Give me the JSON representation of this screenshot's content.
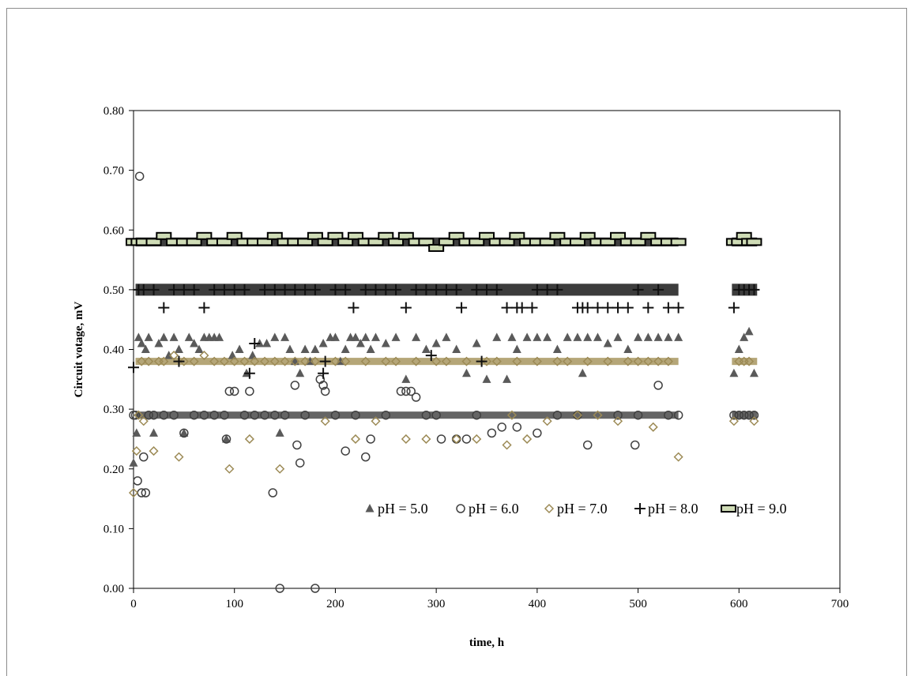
{
  "chart_data": {
    "type": "scatter",
    "xlabel": "time, h",
    "ylabel": "Circuit votage, mV",
    "xlim": [
      0,
      700
    ],
    "ylim": [
      0,
      0.8
    ],
    "x_ticks": [
      "0",
      "100",
      "200",
      "300",
      "400",
      "500",
      "600",
      "700"
    ],
    "y_ticks": [
      "0.00",
      "0.10",
      "0.20",
      "0.30",
      "0.40",
      "0.50",
      "0.60",
      "0.70",
      "0.80"
    ],
    "grid": false,
    "legend_position": "lower-right inside plot",
    "series": [
      {
        "name": "pH = 5.0",
        "marker": "triangle",
        "color": "#5a5a5a",
        "x": [
          0,
          3,
          5,
          8,
          12,
          15,
          20,
          25,
          30,
          35,
          40,
          45,
          50,
          55,
          60,
          65,
          70,
          75,
          80,
          85,
          92,
          98,
          105,
          112,
          118,
          125,
          132,
          140,
          145,
          150,
          155,
          160,
          165,
          170,
          175,
          180,
          188,
          195,
          200,
          205,
          210,
          215,
          220,
          225,
          230,
          235,
          240,
          250,
          260,
          270,
          280,
          290,
          300,
          310,
          320,
          330,
          340,
          350,
          360,
          370,
          375,
          380,
          390,
          400,
          410,
          420,
          430,
          440,
          445,
          450,
          460,
          470,
          480,
          490,
          500,
          510,
          520,
          530,
          540,
          595,
          600,
          605,
          610,
          615
        ],
        "y": [
          0.21,
          0.26,
          0.42,
          0.41,
          0.4,
          0.42,
          0.26,
          0.41,
          0.42,
          0.39,
          0.42,
          0.4,
          0.26,
          0.42,
          0.41,
          0.4,
          0.42,
          0.42,
          0.42,
          0.42,
          0.25,
          0.39,
          0.4,
          0.36,
          0.39,
          0.41,
          0.41,
          0.42,
          0.26,
          0.42,
          0.4,
          0.38,
          0.36,
          0.4,
          0.38,
          0.4,
          0.41,
          0.42,
          0.42,
          0.38,
          0.4,
          0.42,
          0.42,
          0.41,
          0.42,
          0.4,
          0.42,
          0.41,
          0.42,
          0.35,
          0.42,
          0.4,
          0.41,
          0.42,
          0.4,
          0.36,
          0.41,
          0.35,
          0.42,
          0.35,
          0.42,
          0.4,
          0.42,
          0.42,
          0.42,
          0.4,
          0.42,
          0.42,
          0.36,
          0.42,
          0.42,
          0.41,
          0.42,
          0.4,
          0.42,
          0.42,
          0.42,
          0.42,
          0.42,
          0.36,
          0.4,
          0.42,
          0.43,
          0.36
        ]
      },
      {
        "name": "pH = 6.0",
        "marker": "circle",
        "color": "#404040",
        "x": [
          0,
          2,
          4,
          6,
          8,
          10,
          12,
          15,
          20,
          30,
          40,
          50,
          60,
          70,
          80,
          90,
          92,
          95,
          100,
          110,
          115,
          120,
          130,
          138,
          140,
          145,
          150,
          160,
          162,
          165,
          170,
          180,
          185,
          188,
          190,
          200,
          210,
          220,
          230,
          235,
          250,
          265,
          270,
          275,
          280,
          290,
          300,
          305,
          320,
          330,
          340,
          355,
          365,
          380,
          400,
          420,
          440,
          450,
          480,
          497,
          500,
          520,
          530,
          540,
          595,
          600,
          605,
          610,
          615
        ],
        "y": [
          0.29,
          0.29,
          0.18,
          0.69,
          0.16,
          0.22,
          0.16,
          0.29,
          0.29,
          0.29,
          0.29,
          0.26,
          0.29,
          0.29,
          0.29,
          0.29,
          0.25,
          0.33,
          0.33,
          0.29,
          0.33,
          0.29,
          0.29,
          0.16,
          0.29,
          0.0,
          0.29,
          0.34,
          0.24,
          0.21,
          0.29,
          0.0,
          0.35,
          0.34,
          0.33,
          0.29,
          0.23,
          0.29,
          0.22,
          0.25,
          0.29,
          0.33,
          0.33,
          0.33,
          0.32,
          0.29,
          0.29,
          0.25,
          0.25,
          0.25,
          0.29,
          0.26,
          0.27,
          0.27,
          0.26,
          0.29,
          0.29,
          0.24,
          0.29,
          0.24,
          0.29,
          0.34,
          0.29,
          0.29,
          0.29,
          0.29,
          0.29,
          0.29,
          0.29
        ]
      },
      {
        "name": "pH = 7.0",
        "marker": "diamond",
        "color": "#9c8a55",
        "x": [
          0,
          3,
          5,
          8,
          10,
          15,
          20,
          25,
          30,
          40,
          45,
          50,
          60,
          70,
          80,
          90,
          95,
          100,
          110,
          115,
          120,
          130,
          140,
          145,
          150,
          160,
          170,
          180,
          190,
          200,
          210,
          220,
          230,
          240,
          250,
          260,
          270,
          280,
          290,
          300,
          310,
          320,
          330,
          340,
          350,
          360,
          370,
          375,
          380,
          390,
          400,
          410,
          420,
          430,
          440,
          450,
          460,
          470,
          480,
          490,
          500,
          510,
          515,
          520,
          530,
          540,
          595,
          600,
          605,
          610,
          615
        ],
        "y": [
          0.16,
          0.23,
          0.29,
          0.38,
          0.28,
          0.38,
          0.23,
          0.38,
          0.38,
          0.39,
          0.22,
          0.38,
          0.38,
          0.39,
          0.38,
          0.38,
          0.2,
          0.38,
          0.38,
          0.25,
          0.38,
          0.38,
          0.38,
          0.2,
          0.38,
          0.38,
          0.38,
          0.38,
          0.28,
          0.38,
          0.38,
          0.25,
          0.38,
          0.28,
          0.38,
          0.38,
          0.25,
          0.38,
          0.25,
          0.38,
          0.38,
          0.25,
          0.38,
          0.25,
          0.38,
          0.38,
          0.24,
          0.29,
          0.38,
          0.25,
          0.38,
          0.28,
          0.38,
          0.38,
          0.29,
          0.38,
          0.29,
          0.38,
          0.28,
          0.38,
          0.38,
          0.38,
          0.27,
          0.38,
          0.38,
          0.22,
          0.28,
          0.38,
          0.38,
          0.38,
          0.28
        ],
        "lowerbandx": [],
        "lowerbandy": []
      },
      {
        "name": "pH = 8.0",
        "marker": "plus",
        "color": "#111111",
        "x": [
          0,
          5,
          10,
          20,
          30,
          40,
          45,
          50,
          60,
          70,
          80,
          90,
          100,
          110,
          115,
          120,
          130,
          140,
          150,
          160,
          170,
          180,
          188,
          190,
          200,
          210,
          218,
          230,
          240,
          250,
          260,
          270,
          280,
          290,
          295,
          300,
          310,
          320,
          325,
          340,
          345,
          350,
          360,
          370,
          380,
          385,
          395,
          400,
          410,
          420,
          440,
          445,
          450,
          460,
          470,
          480,
          490,
          500,
          510,
          520,
          530,
          540,
          595,
          600,
          605,
          610,
          615
        ],
        "y": [
          0.37,
          0.5,
          0.5,
          0.5,
          0.47,
          0.5,
          0.38,
          0.5,
          0.5,
          0.47,
          0.5,
          0.5,
          0.5,
          0.5,
          0.36,
          0.41,
          0.5,
          0.5,
          0.5,
          0.5,
          0.5,
          0.5,
          0.36,
          0.38,
          0.5,
          0.5,
          0.47,
          0.5,
          0.5,
          0.5,
          0.5,
          0.47,
          0.5,
          0.5,
          0.39,
          0.5,
          0.5,
          0.5,
          0.47,
          0.5,
          0.38,
          0.5,
          0.5,
          0.47,
          0.47,
          0.47,
          0.47,
          0.5,
          0.5,
          0.5,
          0.47,
          0.47,
          0.47,
          0.47,
          0.47,
          0.47,
          0.47,
          0.5,
          0.47,
          0.5,
          0.47,
          0.47,
          0.47,
          0.5,
          0.5,
          0.5,
          0.5
        ]
      },
      {
        "name": "pH = 9.0",
        "marker": "dash",
        "color": "#000000",
        "x": [
          0,
          5,
          10,
          20,
          30,
          40,
          50,
          60,
          70,
          80,
          90,
          100,
          110,
          120,
          130,
          140,
          150,
          160,
          170,
          180,
          190,
          200,
          210,
          220,
          230,
          240,
          250,
          260,
          270,
          280,
          290,
          300,
          310,
          320,
          330,
          340,
          350,
          360,
          370,
          380,
          390,
          400,
          410,
          420,
          430,
          440,
          450,
          460,
          470,
          480,
          490,
          500,
          510,
          520,
          530,
          540,
          595,
          600,
          605,
          610,
          615
        ],
        "y": [
          0.58,
          0.58,
          0.58,
          0.58,
          0.59,
          0.58,
          0.58,
          0.58,
          0.59,
          0.58,
          0.58,
          0.59,
          0.58,
          0.58,
          0.58,
          0.59,
          0.58,
          0.58,
          0.58,
          0.59,
          0.58,
          0.59,
          0.58,
          0.59,
          0.58,
          0.58,
          0.59,
          0.58,
          0.59,
          0.58,
          0.58,
          0.57,
          0.58,
          0.59,
          0.58,
          0.58,
          0.59,
          0.58,
          0.58,
          0.59,
          0.58,
          0.58,
          0.58,
          0.59,
          0.58,
          0.58,
          0.59,
          0.58,
          0.58,
          0.59,
          0.58,
          0.58,
          0.59,
          0.58,
          0.58,
          0.58,
          0.58,
          0.58,
          0.59,
          0.58,
          0.58
        ]
      }
    ]
  }
}
